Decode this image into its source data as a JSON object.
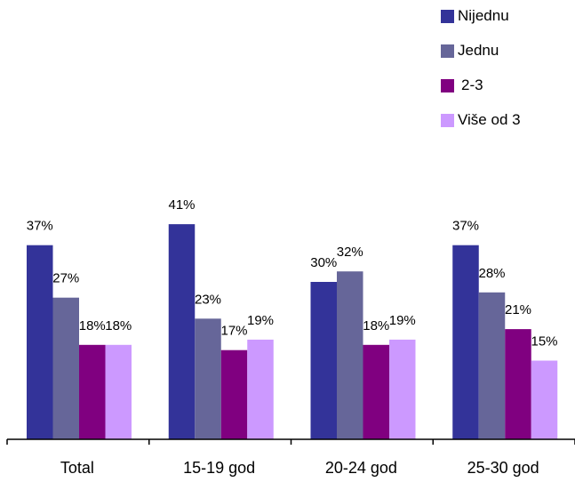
{
  "chart_data": {
    "type": "bar",
    "categories": [
      "Total",
      "15-19 god",
      "20-24 god",
      "25-30 god"
    ],
    "series": [
      {
        "name": "Nijednu",
        "color": "#333399",
        "values": [
          37,
          41,
          30,
          37
        ],
        "labels": [
          "37%",
          "41%",
          "30%",
          "37%"
        ]
      },
      {
        "name": "Jednu",
        "color": "#666699",
        "values": [
          27,
          23,
          32,
          28
        ],
        "labels": [
          "27%",
          "23%",
          "32%",
          "28%"
        ]
      },
      {
        "name": "2-3",
        "color": "#800080",
        "values": [
          18,
          17,
          18,
          21
        ],
        "labels": [
          "18%",
          "17%",
          "18%",
          "21%"
        ]
      },
      {
        "name": "Više od 3",
        "color": "#cc99ff",
        "values": [
          18,
          19,
          19,
          15
        ],
        "labels": [
          "18%",
          "19%",
          "19%",
          "15%"
        ]
      }
    ],
    "title": "",
    "xlabel": "",
    "ylabel": "",
    "ylim": [
      0,
      45
    ],
    "grid": false,
    "legend_position": "top-right"
  }
}
